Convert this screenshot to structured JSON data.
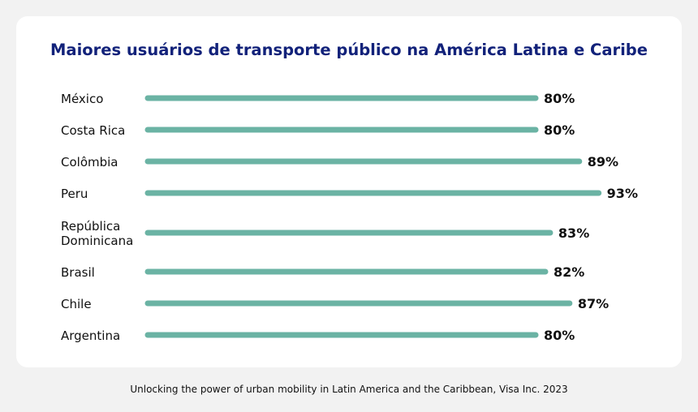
{
  "chart_data": {
    "type": "bar",
    "title": "Maiores usuários de transporte público na América Latina e Caribe",
    "categories": [
      "México",
      "Costa Rica",
      "Colômbia",
      "Peru",
      "República Dominicana",
      "Brasil",
      "Chile",
      "Argentina"
    ],
    "category_lines": [
      [
        "México"
      ],
      [
        "Costa Rica"
      ],
      [
        "Colômbia"
      ],
      [
        "Peru"
      ],
      [
        "República",
        "Dominicana"
      ],
      [
        "Brasil"
      ],
      [
        "Chile"
      ],
      [
        "Argentina"
      ]
    ],
    "values": [
      80,
      80,
      89,
      93,
      83,
      82,
      87,
      80
    ],
    "value_labels": [
      "80%",
      "80%",
      "89%",
      "93%",
      "83%",
      "82%",
      "87%",
      "80%"
    ],
    "unit": "%",
    "xlabel": "",
    "ylabel": "",
    "orientation": "horizontal",
    "grid": false,
    "color": "#6bb3a4"
  },
  "footer": {
    "source": "Unlocking the power of urban mobility in Latin America and the Caribbean, Visa Inc. 2023"
  }
}
